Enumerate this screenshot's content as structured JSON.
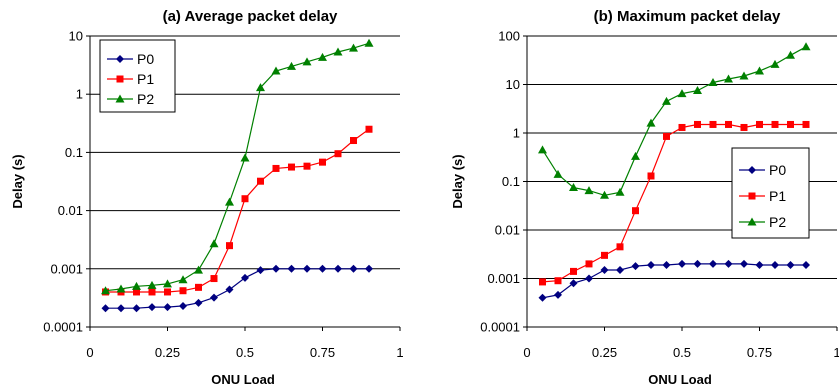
{
  "chart_data": [
    {
      "type": "line",
      "title": "(a) Average packet delay",
      "xlabel": "ONU Load",
      "ylabel": "Delay (s)",
      "xlim": [
        0,
        1
      ],
      "ylim": [
        0.0001,
        10
      ],
      "yscale": "log",
      "xticks": [
        "0",
        "0.25",
        "0.5",
        "0.75",
        "1"
      ],
      "yticks": [
        "0.0001",
        "0.001",
        "0.01",
        "0.1",
        "1",
        "10"
      ],
      "grid": "horizontal",
      "legend": "top-left",
      "x": [
        0.05,
        0.1,
        0.15,
        0.2,
        0.25,
        0.3,
        0.35,
        0.4,
        0.45,
        0.5,
        0.55,
        0.6,
        0.65,
        0.7,
        0.75,
        0.8,
        0.85,
        0.9
      ],
      "series": [
        {
          "name": "P0",
          "color": "#000080",
          "marker": "diamond",
          "values": [
            0.00021,
            0.00021,
            0.00021,
            0.00022,
            0.00022,
            0.00023,
            0.00026,
            0.00032,
            0.00044,
            0.0007,
            0.00095,
            0.001,
            0.001,
            0.001,
            0.001,
            0.001,
            0.001,
            0.001
          ]
        },
        {
          "name": "P1",
          "color": "#ff0000",
          "marker": "square",
          "values": [
            0.0004,
            0.0004,
            0.0004,
            0.0004,
            0.0004,
            0.00042,
            0.00048,
            0.00068,
            0.0025,
            0.016,
            0.032,
            0.053,
            0.056,
            0.058,
            0.068,
            0.095,
            0.16,
            0.25
          ]
        },
        {
          "name": "P2",
          "color": "#008000",
          "marker": "triangle",
          "values": [
            0.00042,
            0.00045,
            0.0005,
            0.00052,
            0.00055,
            0.00065,
            0.00095,
            0.0027,
            0.014,
            0.08,
            1.3,
            2.5,
            3.0,
            3.6,
            4.3,
            5.3,
            6.2,
            7.5
          ]
        }
      ]
    },
    {
      "type": "line",
      "title": "(b) Maximum packet delay",
      "xlabel": "ONU Load",
      "ylabel": "Delay (s)",
      "xlim": [
        0,
        1
      ],
      "ylim": [
        0.0001,
        100
      ],
      "yscale": "log",
      "xticks": [
        "0",
        "0.25",
        "0.5",
        "0.75",
        "1"
      ],
      "yticks": [
        "0.0001",
        "0.001",
        "0.01",
        "0.1",
        "1",
        "10",
        "100"
      ],
      "grid": "horizontal",
      "legend": "right",
      "x": [
        0.05,
        0.1,
        0.15,
        0.2,
        0.25,
        0.3,
        0.35,
        0.4,
        0.45,
        0.5,
        0.55,
        0.6,
        0.65,
        0.7,
        0.75,
        0.8,
        0.85,
        0.9
      ],
      "series": [
        {
          "name": "P0",
          "color": "#000080",
          "marker": "diamond",
          "values": [
            0.0004,
            0.00046,
            0.0008,
            0.001,
            0.0015,
            0.0015,
            0.0018,
            0.0019,
            0.0019,
            0.002,
            0.002,
            0.002,
            0.002,
            0.002,
            0.0019,
            0.0019,
            0.0019,
            0.0019
          ]
        },
        {
          "name": "P1",
          "color": "#ff0000",
          "marker": "square",
          "values": [
            0.00085,
            0.0009,
            0.0014,
            0.002,
            0.003,
            0.0045,
            0.025,
            0.13,
            0.85,
            1.3,
            1.5,
            1.5,
            1.5,
            1.3,
            1.5,
            1.5,
            1.5,
            1.5
          ]
        },
        {
          "name": "P2",
          "color": "#008000",
          "marker": "triangle",
          "values": [
            0.45,
            0.14,
            0.075,
            0.065,
            0.052,
            0.06,
            0.33,
            1.6,
            4.5,
            6.5,
            7.5,
            11,
            13,
            15,
            19,
            26,
            40,
            60
          ]
        }
      ]
    }
  ]
}
